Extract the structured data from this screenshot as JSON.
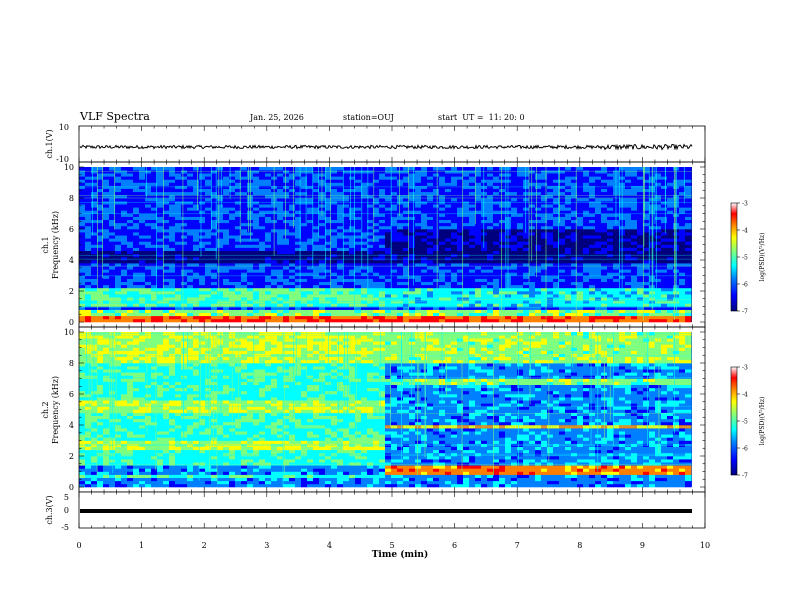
{
  "header": {
    "title": "VLF Spectra",
    "date": "Jan. 25, 2026",
    "station": "station=OUJ",
    "start": "start  UT =  11: 20: 0"
  },
  "chart_data": [
    {
      "type": "line",
      "panel": "ch1-waveform",
      "ylabel": "ch.1(V)",
      "ylim": [
        -10,
        10
      ],
      "yticks": [
        "10",
        "-10"
      ],
      "xlim": [
        0,
        10
      ],
      "description_level": 0
    },
    {
      "type": "heatmap",
      "panel": "ch1-spectrogram",
      "ylabel": "ch.1\nFrequency (kHz)",
      "ylabel_line1": "ch.1",
      "ylabel_line2": "Frequency (kHz)",
      "ylim": [
        0,
        10
      ],
      "yticks": [
        "0",
        "2",
        "4",
        "6",
        "8",
        "10"
      ],
      "xlim": [
        0,
        10
      ],
      "colorbar": {
        "ticks": [
          "-3",
          "-4",
          "-5",
          "-6",
          "-7"
        ],
        "label": "log(PSD)(V²/Hz)",
        "range": [
          -7,
          -3
        ]
      }
    },
    {
      "type": "heatmap",
      "panel": "ch2-spectrogram",
      "ylabel_line1": "ch.2",
      "ylabel_line2": "Frequency (kHz)",
      "ylim": [
        0,
        10
      ],
      "yticks": [
        "0",
        "2",
        "4",
        "6",
        "8",
        "10"
      ],
      "xlim": [
        0,
        10
      ],
      "colorbar": {
        "ticks": [
          "-3",
          "-4",
          "-5",
          "-6",
          "-7"
        ],
        "label": "log(PSD)(V²/Hz)",
        "range": [
          -7,
          -3
        ]
      }
    },
    {
      "type": "line",
      "panel": "ch3-waveform",
      "ylabel": "ch.3(V)",
      "ylim": [
        -5,
        5
      ],
      "yticks": [
        "5",
        "0",
        "-5"
      ],
      "xlim": [
        0,
        10
      ],
      "description_level": -1,
      "xlabel": "Time (min)",
      "xticks": [
        "0",
        "1",
        "2",
        "3",
        "4",
        "5",
        "6",
        "7",
        "8",
        "9",
        "10"
      ]
    }
  ],
  "colors": {
    "scale": [
      "#00007f",
      "#0000ff",
      "#007fff",
      "#00ffff",
      "#7fff7f",
      "#ffff00",
      "#ff7f00",
      "#ff0000",
      "#7f0000"
    ]
  }
}
